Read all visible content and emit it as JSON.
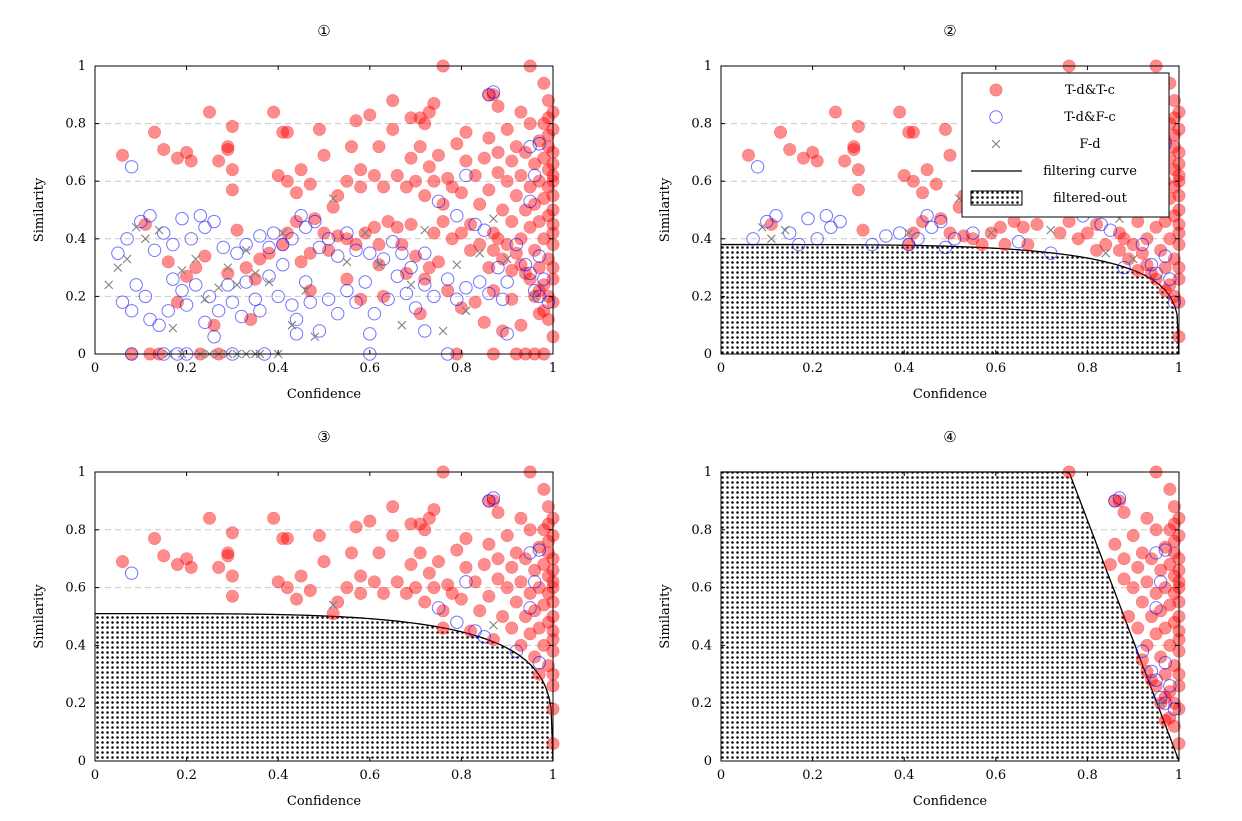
{
  "colors": {
    "tc": "#ff0000",
    "fc": "#0000ff",
    "fd": "#808080",
    "grid": "#c8c8c8",
    "curve": "#000000"
  },
  "legend": {
    "tc_label": "T-d&T-c",
    "fc_label": "T-d&F-c",
    "fd_label": "F-d",
    "curve_label": "filtering curve",
    "region_label": "filtered-out"
  },
  "chart_data": [
    {
      "type": "scatter",
      "title": "①",
      "xlabel": "Confidence",
      "ylabel": "Similarity",
      "xlim": [
        0,
        1
      ],
      "ylim": [
        0,
        1
      ],
      "xticks": [
        "0",
        "0.2",
        "0.4",
        "0.6",
        "0.8",
        "1"
      ],
      "yticks": [
        "0",
        "0.2",
        "0.4",
        "0.6",
        "0.8",
        "1"
      ],
      "grid": "horizontal dashed",
      "legend": false,
      "filter": null,
      "points": "all"
    },
    {
      "type": "scatter",
      "title": "②",
      "xlabel": "Confidence",
      "ylabel": "Similarity",
      "xlim": [
        0,
        1
      ],
      "ylim": [
        0,
        1
      ],
      "xticks": [
        "0",
        "0.2",
        "0.4",
        "0.6",
        "0.8",
        "1"
      ],
      "yticks": [
        "0",
        "0.2",
        "0.4",
        "0.6",
        "0.8",
        "1"
      ],
      "grid": "horizontal dashed",
      "legend": "top-right",
      "filter": {
        "shape": "ellipse",
        "a": 1.0,
        "b": 0.38,
        "p": 4
      },
      "points": "above-curve"
    },
    {
      "type": "scatter",
      "title": "③",
      "xlabel": "Confidence",
      "ylabel": "Similarity",
      "xlim": [
        0,
        1
      ],
      "ylim": [
        0,
        1
      ],
      "xticks": [
        "0",
        "0.2",
        "0.4",
        "0.6",
        "0.8",
        "1"
      ],
      "yticks": [
        "0",
        "0.2",
        "0.4",
        "0.6",
        "0.8",
        "1"
      ],
      "grid": "horizontal dashed",
      "legend": false,
      "filter": {
        "shape": "ellipse",
        "a": 1.0,
        "b": 0.51,
        "p": 4
      },
      "points": "above-curve"
    },
    {
      "type": "scatter",
      "title": "④",
      "xlabel": "Confidence",
      "ylabel": "Similarity",
      "xlim": [
        0,
        1
      ],
      "ylim": [
        0,
        1
      ],
      "xticks": [
        "0",
        "0.2",
        "0.4",
        "0.6",
        "0.8",
        "1"
      ],
      "yticks": [
        "0",
        "0.2",
        "0.4",
        "0.6",
        "0.8",
        "1"
      ],
      "grid": "horizontal dashed",
      "legend": false,
      "filter": {
        "shape": "line",
        "x_top": 0.76,
        "x_bottom": 1.0
      },
      "points": "above-curve"
    }
  ],
  "series": {
    "tc": [
      [
        0.95,
        1.0
      ],
      [
        0.76,
        1.0
      ],
      [
        0.98,
        0.94
      ],
      [
        0.86,
        0.9
      ],
      [
        0.87,
        0.9
      ],
      [
        0.99,
        0.88
      ],
      [
        0.99,
        0.82
      ],
      [
        1.0,
        0.84
      ],
      [
        0.93,
        0.84
      ],
      [
        0.88,
        0.86
      ],
      [
        0.39,
        0.84
      ],
      [
        0.25,
        0.84
      ],
      [
        0.65,
        0.88
      ],
      [
        0.74,
        0.87
      ],
      [
        0.73,
        0.84
      ],
      [
        0.71,
        0.82
      ],
      [
        0.69,
        0.82
      ],
      [
        0.72,
        0.8
      ],
      [
        0.6,
        0.83
      ],
      [
        0.57,
        0.81
      ],
      [
        0.42,
        0.77
      ],
      [
        0.41,
        0.77
      ],
      [
        0.3,
        0.79
      ],
      [
        0.29,
        0.72
      ],
      [
        0.29,
        0.71
      ],
      [
        0.49,
        0.78
      ],
      [
        0.56,
        0.72
      ],
      [
        0.62,
        0.72
      ],
      [
        0.13,
        0.77
      ],
      [
        0.06,
        0.69
      ],
      [
        0.15,
        0.71
      ],
      [
        0.18,
        0.68
      ],
      [
        0.2,
        0.7
      ],
      [
        0.21,
        0.67
      ],
      [
        0.27,
        0.67
      ],
      [
        0.3,
        0.64
      ],
      [
        0.3,
        0.57
      ],
      [
        0.4,
        0.62
      ],
      [
        0.42,
        0.6
      ],
      [
        0.44,
        0.56
      ],
      [
        0.45,
        0.64
      ],
      [
        0.47,
        0.59
      ],
      [
        0.5,
        0.69
      ],
      [
        0.52,
        0.51
      ],
      [
        0.53,
        0.55
      ],
      [
        0.55,
        0.6
      ],
      [
        0.58,
        0.58
      ],
      [
        0.58,
        0.64
      ],
      [
        0.61,
        0.62
      ],
      [
        0.63,
        0.58
      ],
      [
        0.65,
        0.78
      ],
      [
        0.66,
        0.62
      ],
      [
        0.68,
        0.58
      ],
      [
        0.69,
        0.68
      ],
      [
        0.7,
        0.6
      ],
      [
        0.71,
        0.72
      ],
      [
        0.72,
        0.55
      ],
      [
        0.73,
        0.65
      ],
      [
        0.74,
        0.6
      ],
      [
        0.75,
        0.69
      ],
      [
        0.76,
        0.52
      ],
      [
        0.77,
        0.61
      ],
      [
        0.78,
        0.58
      ],
      [
        0.79,
        0.73
      ],
      [
        0.8,
        0.56
      ],
      [
        0.81,
        0.67
      ],
      [
        0.81,
        0.77
      ],
      [
        0.82,
        0.45
      ],
      [
        0.83,
        0.62
      ],
      [
        0.84,
        0.52
      ],
      [
        0.85,
        0.68
      ],
      [
        0.86,
        0.57
      ],
      [
        0.86,
        0.75
      ],
      [
        0.87,
        0.42
      ],
      [
        0.88,
        0.63
      ],
      [
        0.88,
        0.7
      ],
      [
        0.89,
        0.5
      ],
      [
        0.9,
        0.6
      ],
      [
        0.9,
        0.78
      ],
      [
        0.91,
        0.46
      ],
      [
        0.91,
        0.67
      ],
      [
        0.92,
        0.55
      ],
      [
        0.92,
        0.72
      ],
      [
        0.93,
        0.4
      ],
      [
        0.93,
        0.62
      ],
      [
        0.94,
        0.5
      ],
      [
        0.94,
        0.7
      ],
      [
        0.95,
        0.44
      ],
      [
        0.95,
        0.58
      ],
      [
        0.95,
        0.8
      ],
      [
        0.96,
        0.36
      ],
      [
        0.96,
        0.52
      ],
      [
        0.96,
        0.66
      ],
      [
        0.97,
        0.3
      ],
      [
        0.97,
        0.46
      ],
      [
        0.97,
        0.6
      ],
      [
        0.97,
        0.74
      ],
      [
        0.98,
        0.24
      ],
      [
        0.98,
        0.4
      ],
      [
        0.98,
        0.54
      ],
      [
        0.98,
        0.68
      ],
      [
        0.98,
        0.8
      ],
      [
        0.99,
        0.2
      ],
      [
        0.99,
        0.33
      ],
      [
        0.99,
        0.48
      ],
      [
        0.99,
        0.58
      ],
      [
        0.99,
        0.64
      ],
      [
        0.99,
        0.72
      ],
      [
        0.99,
        0.76
      ],
      [
        1.0,
        0.18
      ],
      [
        1.0,
        0.26
      ],
      [
        1.0,
        0.3
      ],
      [
        1.0,
        0.38
      ],
      [
        1.0,
        0.42
      ],
      [
        1.0,
        0.45
      ],
      [
        1.0,
        0.5
      ],
      [
        1.0,
        0.55
      ],
      [
        1.0,
        0.6
      ],
      [
        1.0,
        0.62
      ],
      [
        1.0,
        0.66
      ],
      [
        1.0,
        0.7
      ],
      [
        1.0,
        0.78
      ],
      [
        1.0,
        0.06
      ],
      [
        0.99,
        0.12
      ],
      [
        0.98,
        0.15
      ],
      [
        0.97,
        0.22
      ],
      [
        0.96,
        0.2
      ],
      [
        0.95,
        0.26
      ],
      [
        0.94,
        0.28
      ],
      [
        0.93,
        0.31
      ],
      [
        0.92,
        0.35
      ],
      [
        0.91,
        0.29
      ],
      [
        0.9,
        0.38
      ],
      [
        0.89,
        0.33
      ],
      [
        0.88,
        0.4
      ],
      [
        0.87,
        0.36
      ],
      [
        0.86,
        0.3
      ],
      [
        0.84,
        0.38
      ],
      [
        0.82,
        0.36
      ],
      [
        0.8,
        0.42
      ],
      [
        0.78,
        0.4
      ],
      [
        0.76,
        0.46
      ],
      [
        0.74,
        0.42
      ],
      [
        0.73,
        0.3
      ],
      [
        0.72,
        0.26
      ],
      [
        0.7,
        0.34
      ],
      [
        0.69,
        0.45
      ],
      [
        0.67,
        0.38
      ],
      [
        0.66,
        0.44
      ],
      [
        0.64,
        0.46
      ],
      [
        0.62,
        0.38
      ],
      [
        0.61,
        0.44
      ],
      [
        0.59,
        0.42
      ],
      [
        0.57,
        0.38
      ],
      [
        0.55,
        0.4
      ],
      [
        0.53,
        0.41
      ],
      [
        0.51,
        0.36
      ],
      [
        0.5,
        0.42
      ],
      [
        0.48,
        0.47
      ],
      [
        0.47,
        0.35
      ],
      [
        0.45,
        0.32
      ],
      [
        0.44,
        0.46
      ],
      [
        0.42,
        0.42
      ],
      [
        0.41,
        0.38
      ],
      [
        0.38,
        0.35
      ],
      [
        0.36,
        0.33
      ],
      [
        0.34,
        0.12
      ],
      [
        0.33,
        0.3
      ],
      [
        0.31,
        0.43
      ],
      [
        0.29,
        0.28
      ],
      [
        0.27,
        0.0
      ],
      [
        0.26,
        0.1
      ],
      [
        0.24,
        0.34
      ],
      [
        0.22,
        0.3
      ],
      [
        0.2,
        0.27
      ],
      [
        0.18,
        0.18
      ],
      [
        0.16,
        0.32
      ],
      [
        0.14,
        0.0
      ],
      [
        0.12,
        0.0
      ],
      [
        0.11,
        0.45
      ],
      [
        0.08,
        0.0
      ],
      [
        0.35,
        0.26
      ],
      [
        0.23,
        0.0
      ],
      [
        0.47,
        0.22
      ],
      [
        0.55,
        0.26
      ],
      [
        0.58,
        0.19
      ],
      [
        0.63,
        0.2
      ],
      [
        0.71,
        0.14
      ],
      [
        0.77,
        0.22
      ],
      [
        0.8,
        0.16
      ],
      [
        0.83,
        0.18
      ],
      [
        0.85,
        0.11
      ],
      [
        0.87,
        0.22
      ],
      [
        0.89,
        0.08
      ],
      [
        0.91,
        0.19
      ],
      [
        0.93,
        0.1
      ],
      [
        0.94,
        0.0
      ],
      [
        0.96,
        0.0
      ],
      [
        0.97,
        0.14
      ],
      [
        0.98,
        0.0
      ],
      [
        0.92,
        0.0
      ],
      [
        0.87,
        0.0
      ],
      [
        0.79,
        0.0
      ],
      [
        0.62,
        0.31
      ],
      [
        0.68,
        0.28
      ],
      [
        0.75,
        0.32
      ]
    ],
    "fc": [
      [
        0.87,
        0.91
      ],
      [
        0.86,
        0.9
      ],
      [
        0.95,
        0.72
      ],
      [
        0.97,
        0.73
      ],
      [
        0.08,
        0.65
      ],
      [
        0.19,
        0.47
      ],
      [
        0.23,
        0.48
      ],
      [
        0.12,
        0.48
      ],
      [
        0.1,
        0.46
      ],
      [
        0.15,
        0.42
      ],
      [
        0.05,
        0.35
      ],
      [
        0.07,
        0.4
      ],
      [
        0.13,
        0.36
      ],
      [
        0.17,
        0.38
      ],
      [
        0.21,
        0.4
      ],
      [
        0.24,
        0.44
      ],
      [
        0.26,
        0.46
      ],
      [
        0.28,
        0.37
      ],
      [
        0.31,
        0.35
      ],
      [
        0.33,
        0.38
      ],
      [
        0.36,
        0.41
      ],
      [
        0.38,
        0.37
      ],
      [
        0.39,
        0.42
      ],
      [
        0.41,
        0.38
      ],
      [
        0.43,
        0.4
      ],
      [
        0.45,
        0.48
      ],
      [
        0.46,
        0.44
      ],
      [
        0.48,
        0.46
      ],
      [
        0.49,
        0.37
      ],
      [
        0.51,
        0.4
      ],
      [
        0.53,
        0.34
      ],
      [
        0.55,
        0.42
      ],
      [
        0.57,
        0.36
      ],
      [
        0.6,
        0.35
      ],
      [
        0.63,
        0.33
      ],
      [
        0.65,
        0.39
      ],
      [
        0.67,
        0.35
      ],
      [
        0.69,
        0.3
      ],
      [
        0.72,
        0.35
      ],
      [
        0.75,
        0.53
      ],
      [
        0.79,
        0.48
      ],
      [
        0.81,
        0.62
      ],
      [
        0.83,
        0.45
      ],
      [
        0.85,
        0.43
      ],
      [
        0.88,
        0.3
      ],
      [
        0.9,
        0.25
      ],
      [
        0.92,
        0.38
      ],
      [
        0.94,
        0.31
      ],
      [
        0.95,
        0.28
      ],
      [
        0.96,
        0.22
      ],
      [
        0.97,
        0.2
      ],
      [
        0.98,
        0.26
      ],
      [
        0.99,
        0.18
      ],
      [
        0.95,
        0.53
      ],
      [
        0.96,
        0.62
      ],
      [
        0.97,
        0.34
      ],
      [
        0.06,
        0.18
      ],
      [
        0.08,
        0.15
      ],
      [
        0.09,
        0.24
      ],
      [
        0.11,
        0.2
      ],
      [
        0.12,
        0.12
      ],
      [
        0.14,
        0.1
      ],
      [
        0.16,
        0.15
      ],
      [
        0.17,
        0.26
      ],
      [
        0.19,
        0.22
      ],
      [
        0.2,
        0.17
      ],
      [
        0.22,
        0.24
      ],
      [
        0.24,
        0.11
      ],
      [
        0.25,
        0.2
      ],
      [
        0.27,
        0.15
      ],
      [
        0.29,
        0.24
      ],
      [
        0.3,
        0.18
      ],
      [
        0.32,
        0.13
      ],
      [
        0.33,
        0.25
      ],
      [
        0.35,
        0.19
      ],
      [
        0.36,
        0.15
      ],
      [
        0.38,
        0.27
      ],
      [
        0.4,
        0.2
      ],
      [
        0.41,
        0.31
      ],
      [
        0.43,
        0.17
      ],
      [
        0.44,
        0.12
      ],
      [
        0.46,
        0.25
      ],
      [
        0.47,
        0.18
      ],
      [
        0.49,
        0.08
      ],
      [
        0.51,
        0.19
      ],
      [
        0.53,
        0.14
      ],
      [
        0.55,
        0.22
      ],
      [
        0.57,
        0.18
      ],
      [
        0.59,
        0.25
      ],
      [
        0.61,
        0.14
      ],
      [
        0.64,
        0.19
      ],
      [
        0.66,
        0.27
      ],
      [
        0.68,
        0.21
      ],
      [
        0.7,
        0.16
      ],
      [
        0.72,
        0.24
      ],
      [
        0.74,
        0.2
      ],
      [
        0.77,
        0.26
      ],
      [
        0.79,
        0.19
      ],
      [
        0.81,
        0.23
      ],
      [
        0.84,
        0.25
      ],
      [
        0.86,
        0.21
      ],
      [
        0.89,
        0.19
      ],
      [
        0.08,
        0.0
      ],
      [
        0.15,
        0.0
      ],
      [
        0.18,
        0.0
      ],
      [
        0.2,
        0.0
      ],
      [
        0.3,
        0.0
      ],
      [
        0.37,
        0.0
      ],
      [
        0.6,
        0.0
      ],
      [
        0.77,
        0.0
      ],
      [
        0.26,
        0.06
      ],
      [
        0.44,
        0.07
      ],
      [
        0.6,
        0.07
      ],
      [
        0.72,
        0.08
      ],
      [
        0.9,
        0.07
      ]
    ],
    "fd": [
      [
        0.03,
        0.24
      ],
      [
        0.05,
        0.3
      ],
      [
        0.07,
        0.33
      ],
      [
        0.09,
        0.44
      ],
      [
        0.11,
        0.4
      ],
      [
        0.14,
        0.43
      ],
      [
        0.17,
        0.09
      ],
      [
        0.19,
        0.29
      ],
      [
        0.22,
        0.33
      ],
      [
        0.24,
        0.19
      ],
      [
        0.27,
        0.23
      ],
      [
        0.29,
        0.3
      ],
      [
        0.31,
        0.24
      ],
      [
        0.33,
        0.36
      ],
      [
        0.35,
        0.28
      ],
      [
        0.38,
        0.25
      ],
      [
        0.41,
        0.42
      ],
      [
        0.43,
        0.1
      ],
      [
        0.46,
        0.22
      ],
      [
        0.48,
        0.06
      ],
      [
        0.52,
        0.54
      ],
      [
        0.55,
        0.32
      ],
      [
        0.59,
        0.42
      ],
      [
        0.62,
        0.31
      ],
      [
        0.67,
        0.1
      ],
      [
        0.69,
        0.24
      ],
      [
        0.72,
        0.43
      ],
      [
        0.76,
        0.08
      ],
      [
        0.79,
        0.31
      ],
      [
        0.81,
        0.15
      ],
      [
        0.84,
        0.35
      ],
      [
        0.87,
        0.47
      ],
      [
        0.9,
        0.33
      ],
      [
        0.16,
        0.0
      ],
      [
        0.19,
        0.0
      ],
      [
        0.23,
        0.0
      ],
      [
        0.25,
        0.0
      ],
      [
        0.27,
        0.0
      ],
      [
        0.29,
        0.0
      ],
      [
        0.31,
        0.0
      ],
      [
        0.33,
        0.0
      ],
      [
        0.35,
        0.0
      ],
      [
        0.36,
        0.0
      ],
      [
        0.4,
        0.0
      ],
      [
        0.96,
        0.2
      ]
    ]
  }
}
